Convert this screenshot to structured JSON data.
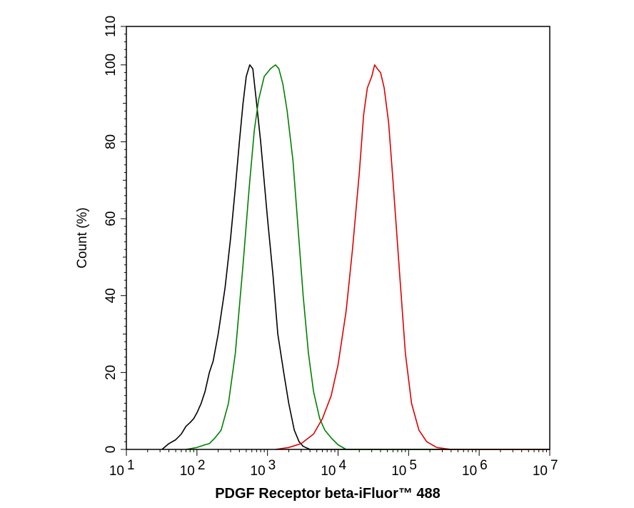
{
  "chart_data": {
    "type": "line",
    "title": "",
    "xlabel": "PDGF Receptor beta-iFluor™ 488",
    "ylabel": "Count  (%)",
    "x_scale": "log",
    "xlim": [
      10,
      10000000
    ],
    "ylim": [
      0,
      110
    ],
    "x_ticks": [
      {
        "value": 10,
        "base": "10",
        "exp": "1"
      },
      {
        "value": 100,
        "base": "10",
        "exp": "2"
      },
      {
        "value": 1000,
        "base": "10",
        "exp": "3"
      },
      {
        "value": 10000,
        "base": "10",
        "exp": "4"
      },
      {
        "value": 100000,
        "base": "10",
        "exp": "5"
      },
      {
        "value": 1000000,
        "base": "10",
        "exp": "6"
      },
      {
        "value": 10000000,
        "base": "10",
        "exp": "7"
      }
    ],
    "y_ticks": [
      {
        "value": 0,
        "label": "0"
      },
      {
        "value": 20,
        "label": "20"
      },
      {
        "value": 40,
        "label": "40"
      },
      {
        "value": 60,
        "label": "60"
      },
      {
        "value": 80,
        "label": "80"
      },
      {
        "value": 100,
        "label": "100"
      },
      {
        "value": 110,
        "label": "110"
      }
    ],
    "grid": false,
    "series": [
      {
        "color": "#000000",
        "points": [
          [
            32,
            0
          ],
          [
            40,
            1.5
          ],
          [
            50,
            2.5
          ],
          [
            60,
            4
          ],
          [
            70,
            6
          ],
          [
            80,
            7
          ],
          [
            90,
            8
          ],
          [
            100,
            9.5
          ],
          [
            115,
            12
          ],
          [
            130,
            15
          ],
          [
            150,
            20
          ],
          [
            170,
            23
          ],
          [
            200,
            30
          ],
          [
            250,
            42
          ],
          [
            300,
            55
          ],
          [
            350,
            68
          ],
          [
            400,
            80
          ],
          [
            450,
            90
          ],
          [
            500,
            97
          ],
          [
            560,
            100
          ],
          [
            620,
            99
          ],
          [
            700,
            90
          ],
          [
            800,
            80
          ],
          [
            1000,
            60
          ],
          [
            1200,
            45
          ],
          [
            1400,
            30
          ],
          [
            1700,
            20
          ],
          [
            2000,
            12
          ],
          [
            2400,
            5
          ],
          [
            2800,
            2
          ],
          [
            3200,
            0.8
          ],
          [
            4000,
            0
          ]
        ]
      },
      {
        "color": "#008000",
        "points": [
          [
            70,
            0
          ],
          [
            100,
            0.5
          ],
          [
            130,
            1.2
          ],
          [
            150,
            1.5
          ],
          [
            180,
            3
          ],
          [
            220,
            5
          ],
          [
            280,
            12
          ],
          [
            350,
            25
          ],
          [
            450,
            48
          ],
          [
            550,
            68
          ],
          [
            650,
            83
          ],
          [
            750,
            91
          ],
          [
            900,
            97
          ],
          [
            1100,
            99
          ],
          [
            1300,
            100
          ],
          [
            1450,
            99
          ],
          [
            1650,
            95
          ],
          [
            1900,
            88
          ],
          [
            2300,
            75
          ],
          [
            2700,
            58
          ],
          [
            3200,
            40
          ],
          [
            3800,
            25
          ],
          [
            4500,
            15
          ],
          [
            5500,
            8
          ],
          [
            6500,
            5
          ],
          [
            8000,
            3
          ],
          [
            10000,
            1.2
          ],
          [
            13000,
            0
          ]
        ]
      },
      {
        "color": "#dd0000",
        "points": [
          [
            1300,
            0
          ],
          [
            2000,
            0.5
          ],
          [
            3000,
            1.5
          ],
          [
            4500,
            4
          ],
          [
            6000,
            8
          ],
          [
            8000,
            14
          ],
          [
            10000,
            22
          ],
          [
            13000,
            36
          ],
          [
            16000,
            52
          ],
          [
            20000,
            72
          ],
          [
            23000,
            87
          ],
          [
            26000,
            94
          ],
          [
            30000,
            97
          ],
          [
            33000,
            100
          ],
          [
            36000,
            99
          ],
          [
            40000,
            98
          ],
          [
            45000,
            94
          ],
          [
            52000,
            85
          ],
          [
            60000,
            70
          ],
          [
            75000,
            45
          ],
          [
            90000,
            25
          ],
          [
            110000,
            12
          ],
          [
            140000,
            5
          ],
          [
            180000,
            2
          ],
          [
            250000,
            0.5
          ],
          [
            400000,
            0
          ]
        ]
      }
    ]
  }
}
